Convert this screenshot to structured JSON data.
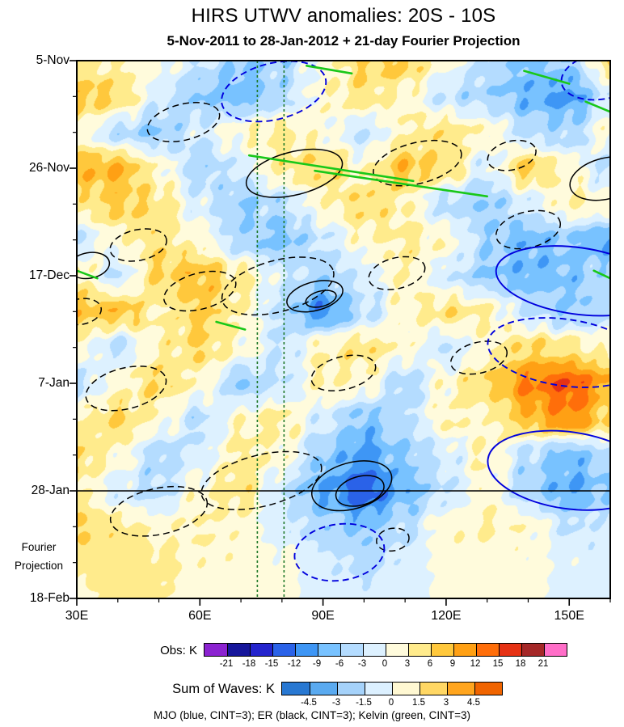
{
  "title": "HIRS UTWV anomalies: 20S - 10S",
  "subtitle": "5-Nov-2011 to 28-Jan-2012 + 21-day Fourier Projection",
  "caption": "MJO (blue, CINT=3); ER (black, CINT=3); Kelvin (green, CINT=3)",
  "chart_data": {
    "type": "heatmap",
    "description": "Hovmoller (time-longitude) diagram of HIRS upper-tropospheric water vapor anomalies averaged over 20S-10S, with overlaid MJO (blue), ER (black) and Kelvin (green) wave contours; observations end 28-Jan (horizontal line), 21-day Fourier projection below.",
    "x_axis": {
      "range_deg_east": [
        30,
        160
      ],
      "major_ticks": [
        {
          "lon": 30,
          "label": "30E"
        },
        {
          "lon": 60,
          "label": "60E"
        },
        {
          "lon": 90,
          "label": "90E"
        },
        {
          "lon": 120,
          "label": "120E"
        },
        {
          "lon": 150,
          "label": "150E"
        }
      ],
      "minor_tick_step": 10
    },
    "y_axis": {
      "range_days": [
        0,
        105
      ],
      "start_date": "5-Nov-2011",
      "major_ticks": [
        {
          "day": 0,
          "label": "5-Nov"
        },
        {
          "day": 21,
          "label": "26-Nov"
        },
        {
          "day": 42,
          "label": "17-Dec"
        },
        {
          "day": 63,
          "label": "7-Jan"
        },
        {
          "day": 84,
          "label": "28-Jan"
        },
        {
          "day": 105,
          "label": "18-Feb"
        }
      ],
      "minor_tick_step": 7,
      "annotation": {
        "lines": [
          "Fourier",
          "Projection"
        ],
        "day": 95
      }
    },
    "obs_colorbar": {
      "label": "Obs: K",
      "levels": [
        -21,
        -18,
        -15,
        -12,
        -9,
        -6,
        -3,
        0,
        3,
        6,
        9,
        12,
        15,
        18,
        21
      ],
      "colors": [
        "#8b22d0",
        "#16169b",
        "#2424cd",
        "#2a62e8",
        "#3e96f5",
        "#78c2ff",
        "#b4dcff",
        "#ddf1ff",
        "#fffbdc",
        "#ffeb8c",
        "#ffc83c",
        "#ffa014",
        "#ff6e0a",
        "#e63214",
        "#a52828",
        "#ff6ec8"
      ]
    },
    "waves_colorbar": {
      "label": "Sum of Waves: K",
      "levels": [
        -4.5,
        -3,
        -1.5,
        0,
        1.5,
        3,
        4.5
      ],
      "colors": [
        "#2878d2",
        "#5aaaf0",
        "#a5d2fa",
        "#dcf0ff",
        "#fff8d2",
        "#ffd764",
        "#ffa51e",
        "#f06400"
      ]
    },
    "field": {
      "units": "K",
      "lons": [
        30,
        40,
        50,
        60,
        70,
        80,
        90,
        100,
        110,
        120,
        130,
        140,
        150,
        160
      ],
      "days": [
        0,
        7,
        14,
        21,
        28,
        35,
        42,
        49,
        56,
        63,
        70,
        77,
        84,
        91,
        98,
        105
      ],
      "values": [
        [
          3,
          3,
          1,
          -3,
          -6,
          -5,
          1,
          6,
          7,
          1,
          -4,
          -7,
          -6,
          6
        ],
        [
          8,
          6,
          -2,
          -6,
          -8,
          -4,
          2,
          5,
          2,
          -3,
          -5,
          -8,
          -10,
          -2
        ],
        [
          2,
          -4,
          -6,
          -2,
          2,
          4,
          1,
          -3,
          3,
          5,
          2,
          -4,
          -5,
          2
        ],
        [
          8,
          9,
          2,
          -5,
          -2,
          4,
          6,
          2,
          8,
          5,
          -2,
          7,
          2,
          -4
        ],
        [
          4,
          7,
          5,
          -2,
          -6,
          -4,
          2,
          6,
          3,
          -4,
          -6,
          -2,
          3,
          2
        ],
        [
          -3,
          2,
          5,
          2,
          -5,
          -7,
          -3,
          2,
          4,
          2,
          -5,
          -8,
          -6,
          -9
        ],
        [
          4,
          -3,
          6,
          8,
          4,
          -2,
          -5,
          -2,
          3,
          -2,
          -6,
          -8,
          -7,
          -4
        ],
        [
          7,
          8,
          3,
          7,
          3,
          -4,
          -11,
          -4,
          2,
          5,
          3,
          -3,
          -6,
          -4
        ],
        [
          2,
          -4,
          3,
          6,
          2,
          -3,
          3,
          5,
          2,
          -3,
          2,
          6,
          4,
          2
        ],
        [
          -4,
          2,
          6,
          2,
          -6,
          -3,
          3,
          2,
          -5,
          2,
          6,
          12,
          15,
          9
        ],
        [
          3,
          6,
          2,
          -4,
          2,
          4,
          -2,
          -7,
          -4,
          3,
          2,
          8,
          12,
          6
        ],
        [
          6,
          2,
          -5,
          -2,
          4,
          2,
          -6,
          -10,
          -6,
          -2,
          3,
          -4,
          -8,
          -4
        ],
        [
          4,
          -2,
          -4,
          2,
          5,
          -3,
          -9,
          -14,
          -8,
          -3,
          2,
          -5,
          -9,
          -6
        ],
        [
          6,
          4,
          2,
          3,
          2,
          -2,
          -5,
          -7,
          -4,
          2,
          3,
          2,
          -3,
          -2
        ],
        [
          4,
          5,
          4,
          2,
          2,
          1,
          -2,
          -4,
          -2,
          1,
          2,
          1,
          -1,
          -1
        ],
        [
          2,
          4,
          3,
          2,
          1,
          1,
          -1,
          -2,
          -1,
          1,
          1,
          1,
          -1,
          -1
        ]
      ]
    },
    "overlays": {
      "mjo": {
        "color": "#0000dd",
        "cint": 3,
        "ellipses": [
          {
            "lon": 78,
            "day": 6,
            "rlon": 13,
            "rday": 5.5,
            "rot": -14,
            "dashed": true
          },
          {
            "lon": 158,
            "day": 3,
            "rlon": 10,
            "rday": 4.5,
            "rot": -10,
            "dashed": true
          },
          {
            "lon": 152,
            "day": 43,
            "rlon": 20,
            "rday": 6.5,
            "rot": 8,
            "dashed": false
          },
          {
            "lon": 149,
            "day": 57,
            "rlon": 19,
            "rday": 6.5,
            "rot": 8,
            "dashed": true
          },
          {
            "lon": 150,
            "day": 80,
            "rlon": 20,
            "rday": 7.5,
            "rot": 8,
            "dashed": false
          },
          {
            "lon": 94,
            "day": 96,
            "rlon": 11,
            "rday": 5.5,
            "rot": -8,
            "dashed": true
          }
        ]
      },
      "er": {
        "color": "#000000",
        "cint": 3,
        "ellipses": [
          {
            "lon": 56,
            "day": 12,
            "rlon": 9,
            "rday": 3.5,
            "rot": -14,
            "dashed": true
          },
          {
            "lon": 83,
            "day": 22,
            "rlon": 12,
            "rday": 4.2,
            "rot": -14,
            "dashed": false
          },
          {
            "lon": 113,
            "day": 20,
            "rlon": 11,
            "rday": 4,
            "rot": -14,
            "dashed": true
          },
          {
            "lon": 136,
            "day": 18.5,
            "rlon": 6,
            "rday": 2.8,
            "rot": -14,
            "dashed": true
          },
          {
            "lon": 159,
            "day": 23,
            "rlon": 9,
            "rday": 4,
            "rot": -14,
            "dashed": false
          },
          {
            "lon": 33,
            "day": 40,
            "rlon": 5,
            "rday": 2.5,
            "rot": -10,
            "dashed": false
          },
          {
            "lon": 45,
            "day": 36,
            "rlon": 7,
            "rday": 3,
            "rot": -12,
            "dashed": true
          },
          {
            "lon": 60,
            "day": 45,
            "rlon": 9,
            "rday": 3.5,
            "rot": -15,
            "dashed": true
          },
          {
            "lon": 79,
            "day": 44,
            "rlon": 14,
            "rday": 5,
            "rot": -15,
            "dashed": true
          },
          {
            "lon": 88,
            "day": 46,
            "rlon": 7,
            "rday": 2.8,
            "rot": -15,
            "dashed": false
          },
          {
            "lon": 89.5,
            "day": 46.5,
            "rlon": 3.8,
            "rday": 1.5,
            "rot": -15,
            "dashed": false
          },
          {
            "lon": 108,
            "day": 41.5,
            "rlon": 7,
            "rday": 3,
            "rot": -14,
            "dashed": true
          },
          {
            "lon": 31,
            "day": 49,
            "rlon": 5,
            "rday": 2.5,
            "rot": -10,
            "dashed": true
          },
          {
            "lon": 42,
            "day": 64,
            "rlon": 10,
            "rday": 4,
            "rot": -14,
            "dashed": true
          },
          {
            "lon": 95,
            "day": 61,
            "rlon": 8,
            "rday": 3.2,
            "rot": -14,
            "dashed": true
          },
          {
            "lon": 128,
            "day": 58,
            "rlon": 7,
            "rday": 3,
            "rot": -14,
            "dashed": true
          },
          {
            "lon": 140,
            "day": 33,
            "rlon": 8,
            "rday": 3.5,
            "rot": -14,
            "dashed": true
          },
          {
            "lon": 75,
            "day": 82,
            "rlon": 15,
            "rday": 5,
            "rot": -14,
            "dashed": true
          },
          {
            "lon": 50,
            "day": 88,
            "rlon": 12,
            "rday": 4.5,
            "rot": -12,
            "dashed": true
          },
          {
            "lon": 97,
            "day": 83,
            "rlon": 10,
            "rday": 4.5,
            "rot": -16,
            "dashed": false
          },
          {
            "lon": 99,
            "day": 84,
            "rlon": 6,
            "rday": 2.8,
            "rot": -16,
            "dashed": false
          },
          {
            "lon": 107,
            "day": 93.5,
            "rlon": 4,
            "rday": 2.2,
            "rot": -10,
            "dashed": true
          }
        ]
      },
      "kelvin": {
        "color": "#19c819",
        "cint": 3,
        "lines": [
          {
            "lon1": 72,
            "day1": 18.5,
            "lon2": 112,
            "day2": 23.5
          },
          {
            "lon1": 88,
            "day1": 21.5,
            "lon2": 130,
            "day2": 26.5
          },
          {
            "lon1": 86,
            "day1": 1,
            "lon2": 97,
            "day2": 2.5
          },
          {
            "lon1": 139,
            "day1": 2,
            "lon2": 150,
            "day2": 4.5
          },
          {
            "lon1": 154,
            "day1": 8,
            "lon2": 160,
            "day2": 10
          },
          {
            "lon1": 30,
            "day1": 41,
            "lon2": 35,
            "day2": 42.5
          },
          {
            "lon1": 156,
            "day1": 41,
            "lon2": 160,
            "day2": 42.5
          },
          {
            "lon1": 64,
            "day1": 51,
            "lon2": 71,
            "day2": 52.5
          }
        ]
      },
      "vertical_lines": {
        "color": "#1e7828",
        "lons": [
          74,
          80.5
        ]
      },
      "obs_end_line": {
        "day": 84,
        "color": "#000000"
      }
    }
  }
}
